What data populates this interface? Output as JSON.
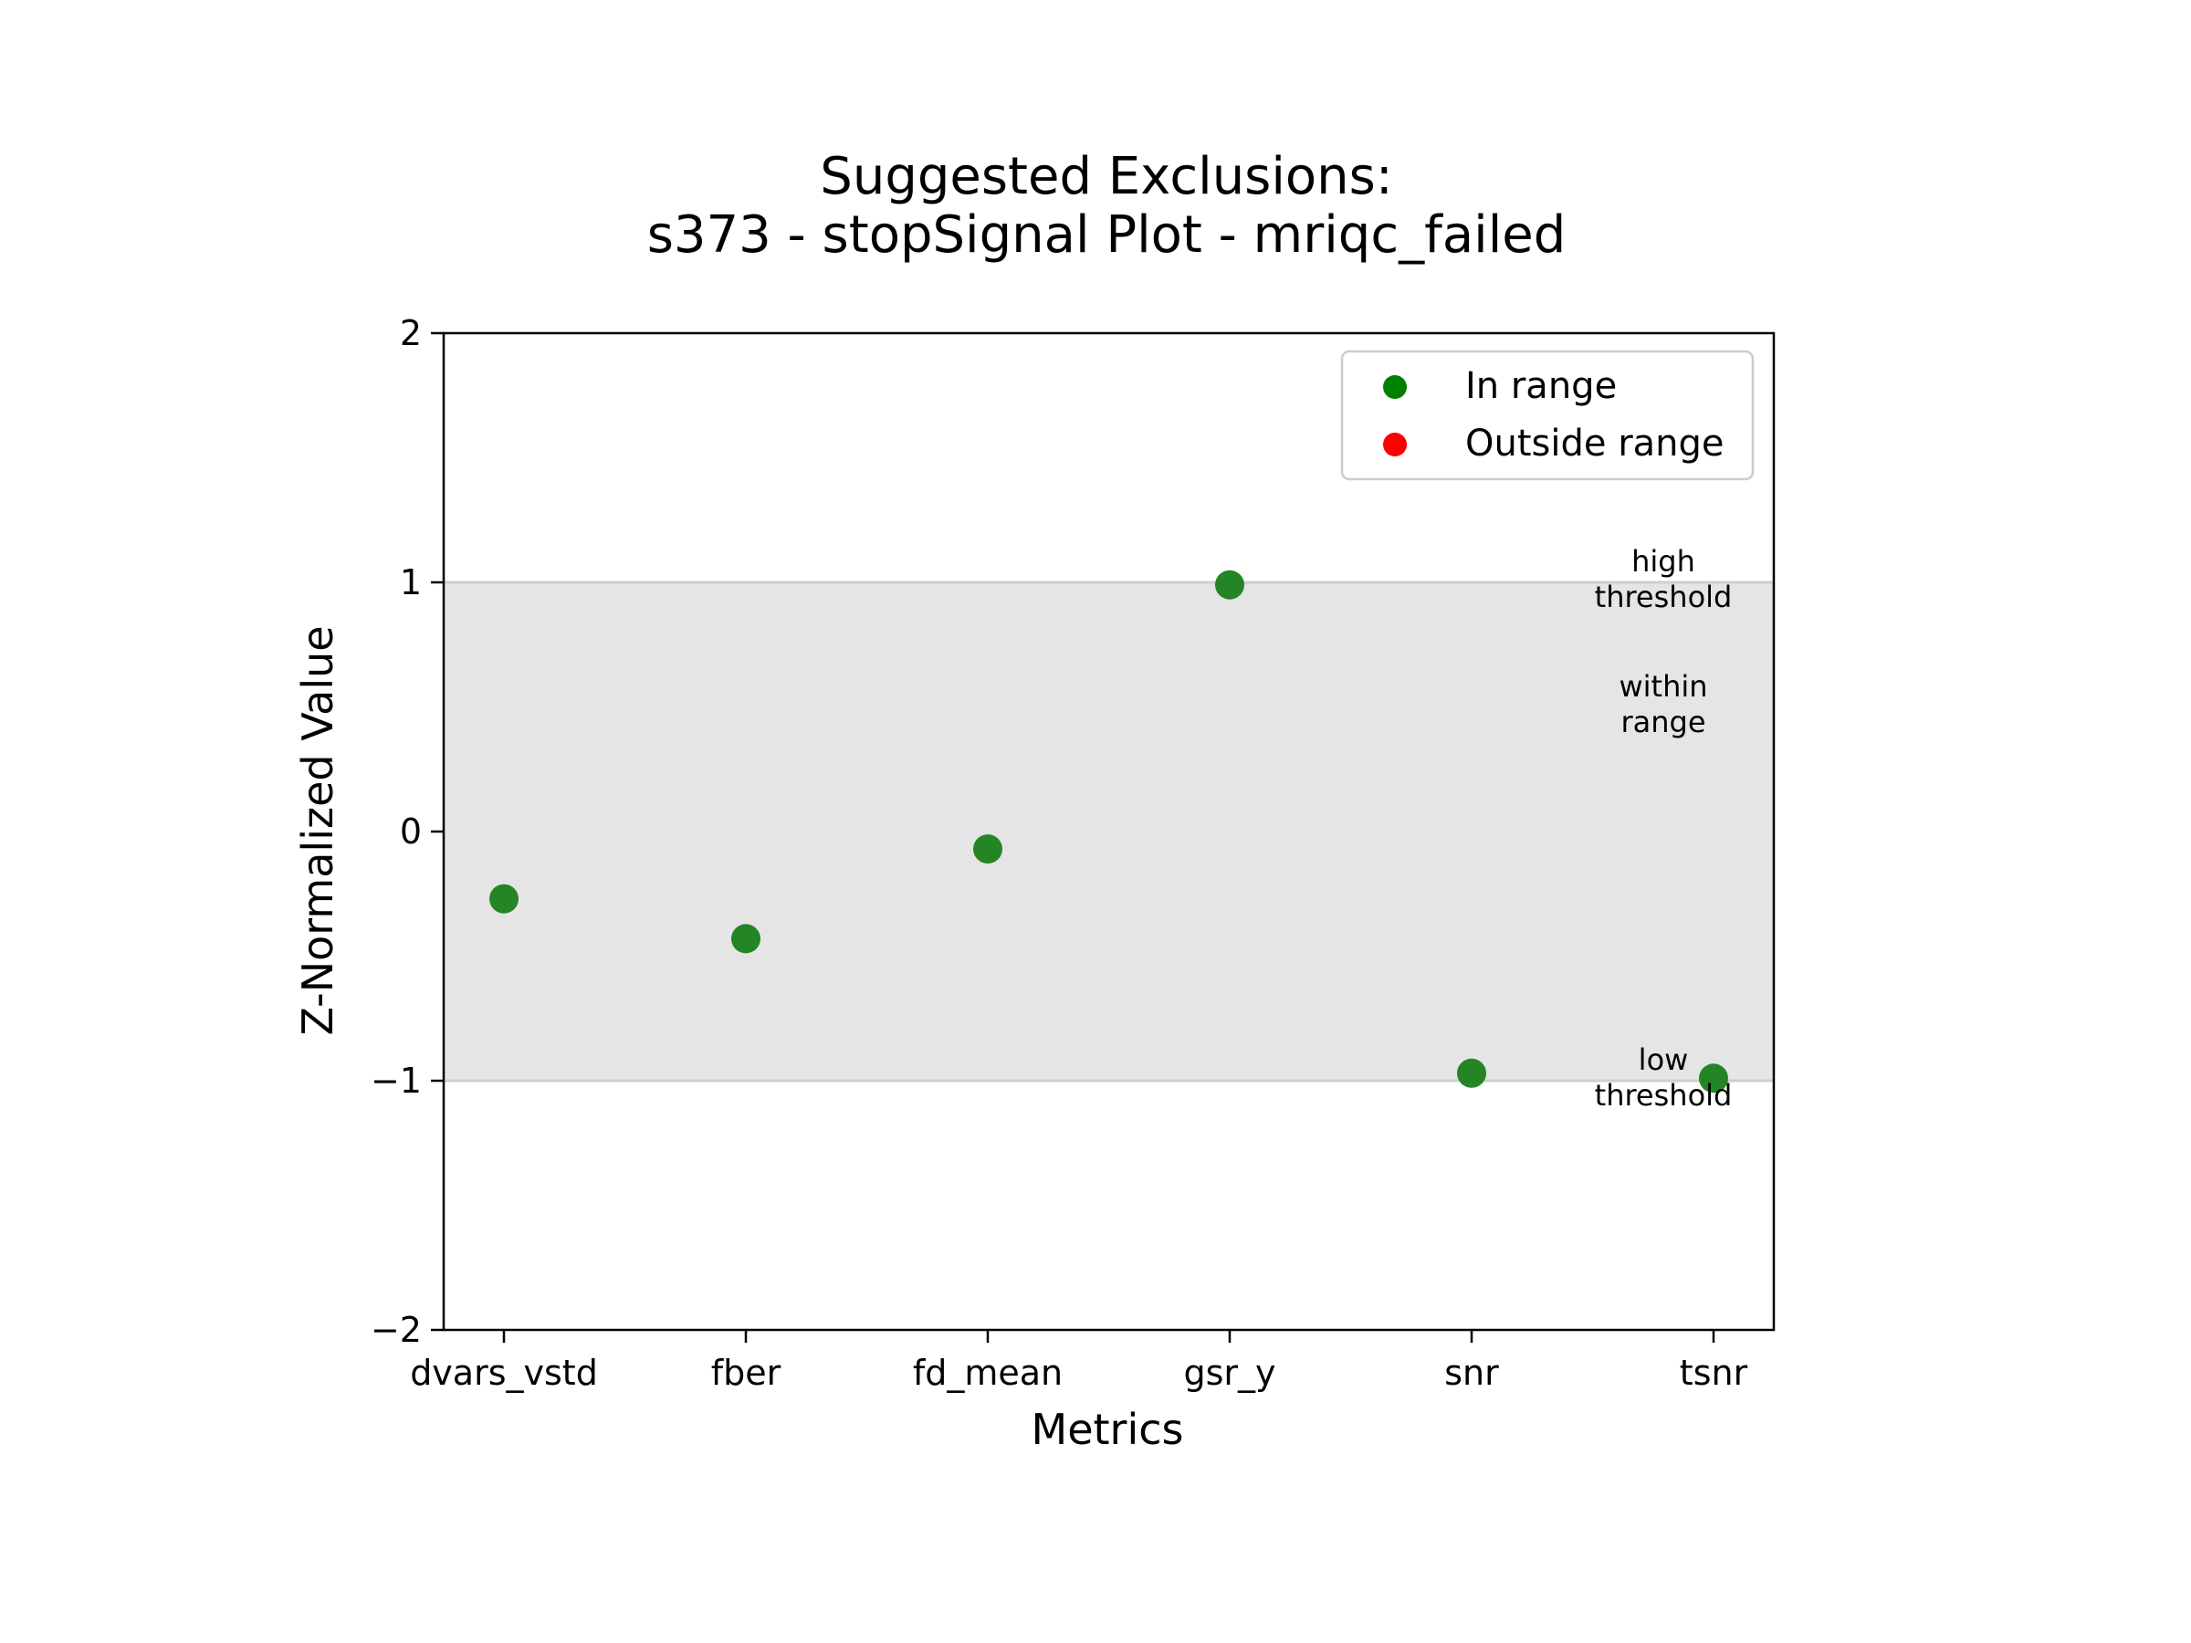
{
  "chart_data": {
    "type": "scatter",
    "title_line1": "Suggested Exclusions:",
    "title_line2": "s373 - stopSignal Plot - mriqc_failed",
    "xlabel": "Metrics",
    "ylabel": "Z-Normalized Value",
    "categories": [
      "dvars_vstd",
      "fber",
      "fd_mean",
      "gsr_y",
      "snr",
      "tsnr"
    ],
    "values": [
      -0.27,
      -0.43,
      -0.07,
      0.99,
      -0.97,
      -0.99
    ],
    "ylim": [
      -2,
      2
    ],
    "yticks": [
      2,
      1,
      0,
      -1,
      -2
    ],
    "ytick_labels": [
      "2",
      "1",
      "0",
      "−1",
      "−2"
    ],
    "threshold_low": -1,
    "threshold_high": 1,
    "band_color": "#e5e5e5",
    "point_color": "#1a7f1a",
    "grid": false,
    "legend": {
      "placement": "top-right",
      "entries": [
        {
          "label": "In range",
          "color": "#008000"
        },
        {
          "label": "Outside range",
          "color": "#ff0000"
        }
      ]
    },
    "annotations": {
      "high_line1": "high",
      "high_line2": "threshold",
      "within_line1": "within",
      "within_line2": "range",
      "low_line1": "low",
      "low_line2": "threshold"
    }
  }
}
